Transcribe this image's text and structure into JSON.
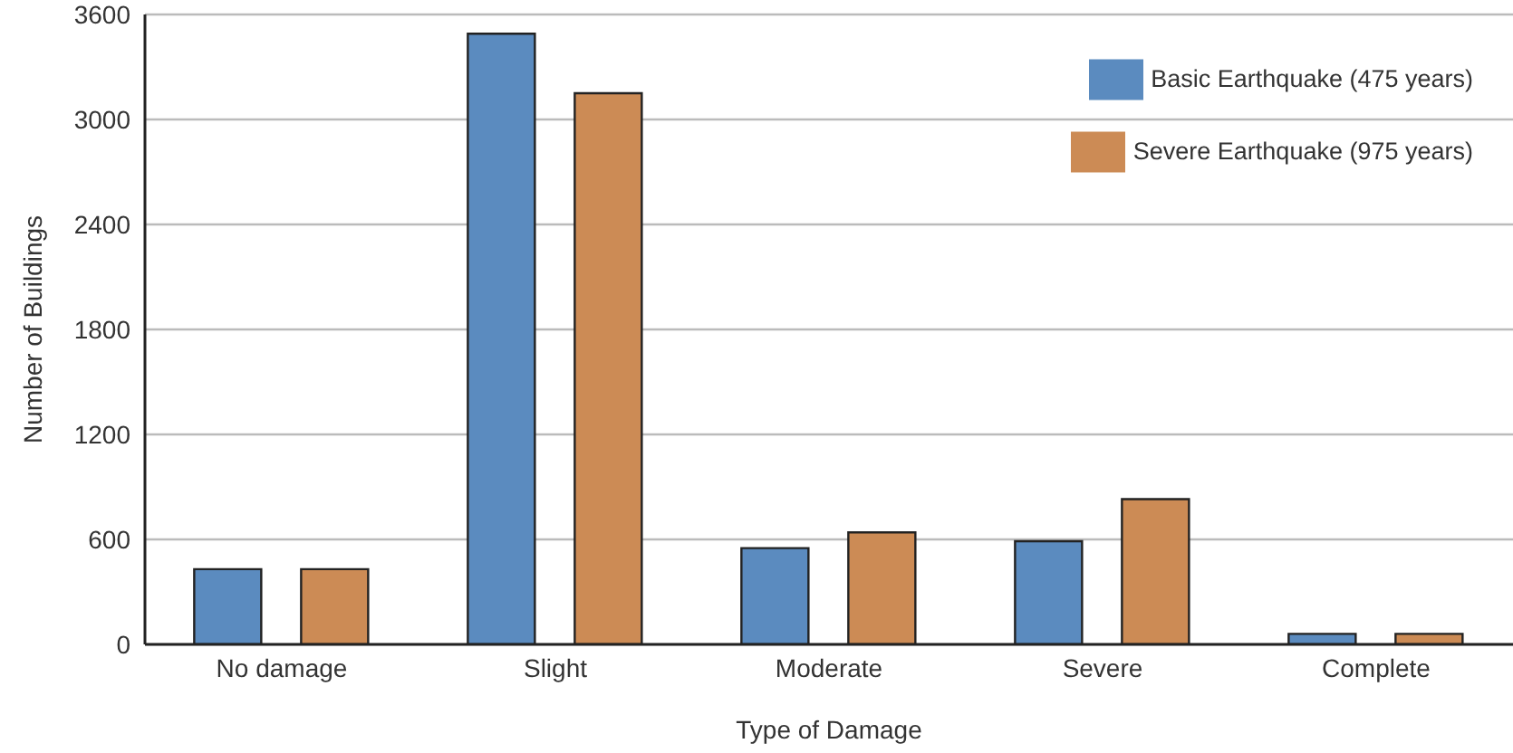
{
  "chart_data": {
    "type": "bar",
    "xlabel": "Type of Damage",
    "ylabel": "Number of Buildings",
    "categories": [
      "No damage",
      "Slight",
      "Moderate",
      "Severe",
      "Complete"
    ],
    "series": [
      {
        "name": "Basic Earthquake (475 years)",
        "color": "#5b8bbf",
        "values": [
          430,
          3490,
          550,
          590,
          60
        ]
      },
      {
        "name": "Severe Earthquake (975 years)",
        "color": "#cc8b55",
        "values": [
          430,
          3150,
          640,
          830,
          60
        ]
      }
    ],
    "ylim": [
      0,
      3600
    ],
    "yticks": [
      0,
      600,
      1200,
      1800,
      2400,
      3000,
      3600
    ],
    "grid": "y",
    "legend": "top right"
  }
}
